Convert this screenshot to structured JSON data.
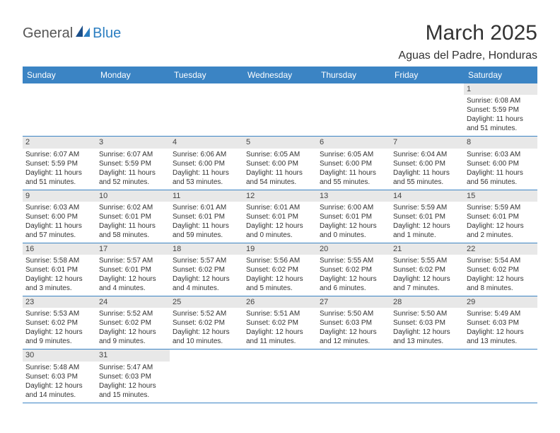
{
  "brand": {
    "general": "General",
    "blue": "Blue"
  },
  "title": "March 2025",
  "location": "Aguas del Padre, Honduras",
  "colors": {
    "header_bg": "#3b84c4",
    "header_text": "#ffffff",
    "border": "#3b84c4",
    "daynum_bg": "#e8e8e8",
    "logo_blue": "#2b7ec1",
    "logo_gray": "#555555"
  },
  "weekdays": [
    "Sunday",
    "Monday",
    "Tuesday",
    "Wednesday",
    "Thursday",
    "Friday",
    "Saturday"
  ],
  "weeks": [
    [
      null,
      null,
      null,
      null,
      null,
      null,
      {
        "n": "1",
        "sr": "Sunrise: 6:08 AM",
        "ss": "Sunset: 5:59 PM",
        "dl": "Daylight: 11 hours and 51 minutes."
      }
    ],
    [
      {
        "n": "2",
        "sr": "Sunrise: 6:07 AM",
        "ss": "Sunset: 5:59 PM",
        "dl": "Daylight: 11 hours and 51 minutes."
      },
      {
        "n": "3",
        "sr": "Sunrise: 6:07 AM",
        "ss": "Sunset: 5:59 PM",
        "dl": "Daylight: 11 hours and 52 minutes."
      },
      {
        "n": "4",
        "sr": "Sunrise: 6:06 AM",
        "ss": "Sunset: 6:00 PM",
        "dl": "Daylight: 11 hours and 53 minutes."
      },
      {
        "n": "5",
        "sr": "Sunrise: 6:05 AM",
        "ss": "Sunset: 6:00 PM",
        "dl": "Daylight: 11 hours and 54 minutes."
      },
      {
        "n": "6",
        "sr": "Sunrise: 6:05 AM",
        "ss": "Sunset: 6:00 PM",
        "dl": "Daylight: 11 hours and 55 minutes."
      },
      {
        "n": "7",
        "sr": "Sunrise: 6:04 AM",
        "ss": "Sunset: 6:00 PM",
        "dl": "Daylight: 11 hours and 55 minutes."
      },
      {
        "n": "8",
        "sr": "Sunrise: 6:03 AM",
        "ss": "Sunset: 6:00 PM",
        "dl": "Daylight: 11 hours and 56 minutes."
      }
    ],
    [
      {
        "n": "9",
        "sr": "Sunrise: 6:03 AM",
        "ss": "Sunset: 6:00 PM",
        "dl": "Daylight: 11 hours and 57 minutes."
      },
      {
        "n": "10",
        "sr": "Sunrise: 6:02 AM",
        "ss": "Sunset: 6:01 PM",
        "dl": "Daylight: 11 hours and 58 minutes."
      },
      {
        "n": "11",
        "sr": "Sunrise: 6:01 AM",
        "ss": "Sunset: 6:01 PM",
        "dl": "Daylight: 11 hours and 59 minutes."
      },
      {
        "n": "12",
        "sr": "Sunrise: 6:01 AM",
        "ss": "Sunset: 6:01 PM",
        "dl": "Daylight: 12 hours and 0 minutes."
      },
      {
        "n": "13",
        "sr": "Sunrise: 6:00 AM",
        "ss": "Sunset: 6:01 PM",
        "dl": "Daylight: 12 hours and 0 minutes."
      },
      {
        "n": "14",
        "sr": "Sunrise: 5:59 AM",
        "ss": "Sunset: 6:01 PM",
        "dl": "Daylight: 12 hours and 1 minute."
      },
      {
        "n": "15",
        "sr": "Sunrise: 5:59 AM",
        "ss": "Sunset: 6:01 PM",
        "dl": "Daylight: 12 hours and 2 minutes."
      }
    ],
    [
      {
        "n": "16",
        "sr": "Sunrise: 5:58 AM",
        "ss": "Sunset: 6:01 PM",
        "dl": "Daylight: 12 hours and 3 minutes."
      },
      {
        "n": "17",
        "sr": "Sunrise: 5:57 AM",
        "ss": "Sunset: 6:01 PM",
        "dl": "Daylight: 12 hours and 4 minutes."
      },
      {
        "n": "18",
        "sr": "Sunrise: 5:57 AM",
        "ss": "Sunset: 6:02 PM",
        "dl": "Daylight: 12 hours and 4 minutes."
      },
      {
        "n": "19",
        "sr": "Sunrise: 5:56 AM",
        "ss": "Sunset: 6:02 PM",
        "dl": "Daylight: 12 hours and 5 minutes."
      },
      {
        "n": "20",
        "sr": "Sunrise: 5:55 AM",
        "ss": "Sunset: 6:02 PM",
        "dl": "Daylight: 12 hours and 6 minutes."
      },
      {
        "n": "21",
        "sr": "Sunrise: 5:55 AM",
        "ss": "Sunset: 6:02 PM",
        "dl": "Daylight: 12 hours and 7 minutes."
      },
      {
        "n": "22",
        "sr": "Sunrise: 5:54 AM",
        "ss": "Sunset: 6:02 PM",
        "dl": "Daylight: 12 hours and 8 minutes."
      }
    ],
    [
      {
        "n": "23",
        "sr": "Sunrise: 5:53 AM",
        "ss": "Sunset: 6:02 PM",
        "dl": "Daylight: 12 hours and 9 minutes."
      },
      {
        "n": "24",
        "sr": "Sunrise: 5:52 AM",
        "ss": "Sunset: 6:02 PM",
        "dl": "Daylight: 12 hours and 9 minutes."
      },
      {
        "n": "25",
        "sr": "Sunrise: 5:52 AM",
        "ss": "Sunset: 6:02 PM",
        "dl": "Daylight: 12 hours and 10 minutes."
      },
      {
        "n": "26",
        "sr": "Sunrise: 5:51 AM",
        "ss": "Sunset: 6:02 PM",
        "dl": "Daylight: 12 hours and 11 minutes."
      },
      {
        "n": "27",
        "sr": "Sunrise: 5:50 AM",
        "ss": "Sunset: 6:03 PM",
        "dl": "Daylight: 12 hours and 12 minutes."
      },
      {
        "n": "28",
        "sr": "Sunrise: 5:50 AM",
        "ss": "Sunset: 6:03 PM",
        "dl": "Daylight: 12 hours and 13 minutes."
      },
      {
        "n": "29",
        "sr": "Sunrise: 5:49 AM",
        "ss": "Sunset: 6:03 PM",
        "dl": "Daylight: 12 hours and 13 minutes."
      }
    ],
    [
      {
        "n": "30",
        "sr": "Sunrise: 5:48 AM",
        "ss": "Sunset: 6:03 PM",
        "dl": "Daylight: 12 hours and 14 minutes."
      },
      {
        "n": "31",
        "sr": "Sunrise: 5:47 AM",
        "ss": "Sunset: 6:03 PM",
        "dl": "Daylight: 12 hours and 15 minutes."
      },
      null,
      null,
      null,
      null,
      null
    ]
  ]
}
